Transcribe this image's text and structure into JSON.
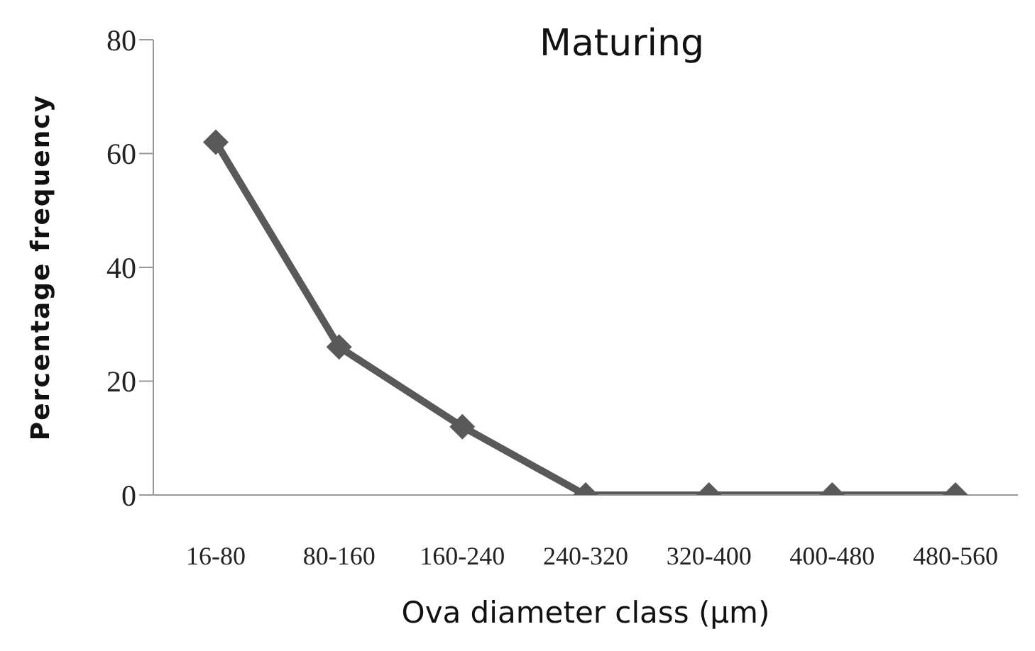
{
  "chart_data": {
    "type": "line",
    "title": "Maturing",
    "xlabel": "Ova diameter class (µm)",
    "ylabel": "Percentage frequency",
    "categories": [
      "16-80",
      "80-160",
      "160-240",
      "240-320",
      "320-400",
      "400-480",
      "480-560"
    ],
    "series": [
      {
        "color": "#595959",
        "values": [
          62,
          26,
          12,
          0,
          0,
          0,
          0
        ]
      }
    ],
    "ylim": [
      0,
      80
    ],
    "yticks": [
      0,
      20,
      40,
      60,
      80
    ],
    "grid": false,
    "legend": false,
    "marker": "diamond",
    "line_style": "solid"
  }
}
